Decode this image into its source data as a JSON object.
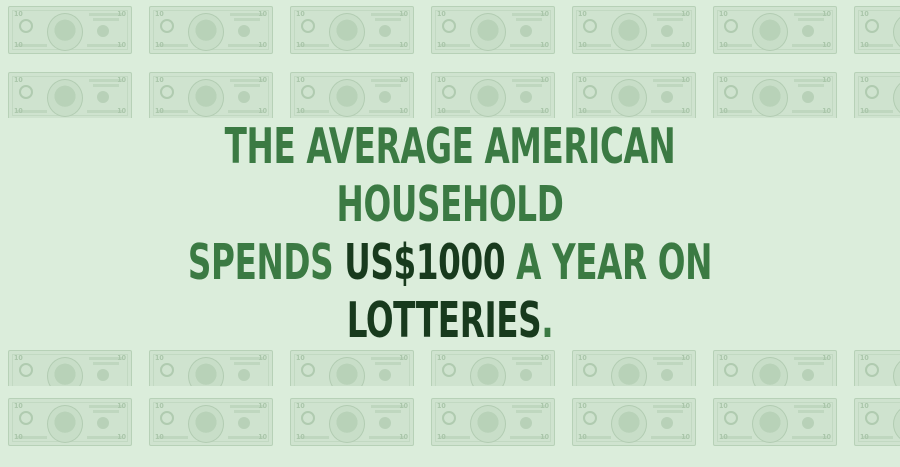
{
  "headline": {
    "line1": "THE AVERAGE AMERICAN HOUSEHOLD",
    "line2_before": "SPENDS ",
    "line2_highlight": "US$1000",
    "line2_after": " A YEAR ON",
    "line3_highlight": "LOTTERIES",
    "line3_after": "."
  },
  "colors": {
    "background": "#dbeddb",
    "text_green": "#3b7a43",
    "text_dark": "#183a1d",
    "bill_tint": "#cfe3cf"
  },
  "background_pattern": {
    "motif": "ten-dollar-bill-icon",
    "denomination": "10"
  }
}
